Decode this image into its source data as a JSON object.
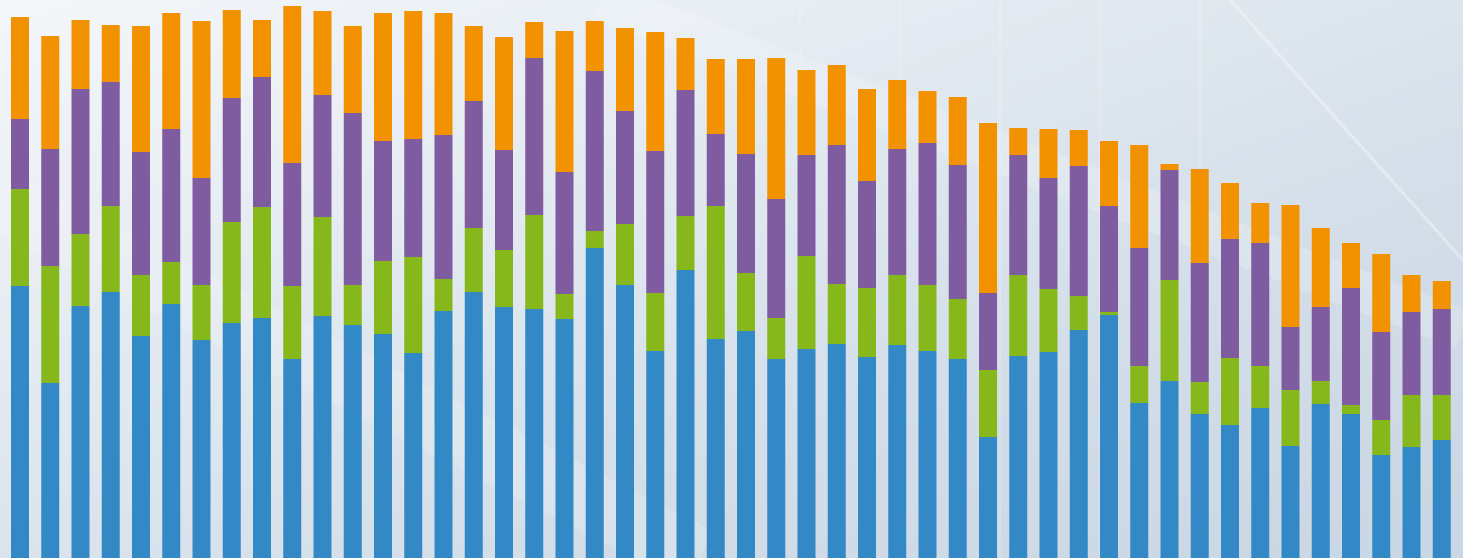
{
  "chart_data": {
    "type": "stacked-bar",
    "ylim": [
      0,
      558
    ],
    "series": [
      {
        "color": "#3389c6",
        "values": [
          272,
          175,
          252,
          266,
          222,
          254,
          218,
          235,
          240,
          199,
          242,
          233,
          224,
          205,
          247,
          266,
          251,
          249,
          239,
          310,
          273,
          207,
          288,
          219,
          227,
          199,
          209,
          214,
          201,
          213,
          207,
          199,
          121,
          202,
          206,
          228,
          243,
          155,
          177,
          144,
          133,
          150,
          112,
          154,
          144,
          103,
          111,
          118
        ]
      },
      {
        "color": "#86b81b",
        "values": [
          97,
          117,
          72,
          86,
          61,
          42,
          55,
          101,
          111,
          73,
          99,
          40,
          73,
          96,
          32,
          64,
          57,
          94,
          25,
          17,
          61,
          58,
          54,
          133,
          58,
          41,
          93,
          60,
          69,
          70,
          66,
          60,
          67,
          81,
          63,
          34,
          3,
          37,
          101,
          32,
          67,
          42,
          56,
          23,
          9,
          35,
          52,
          45
        ]
      },
      {
        "color": "#7f5ca0",
        "values": [
          70,
          117,
          145,
          124,
          123,
          133,
          107,
          124,
          130,
          123,
          122,
          172,
          120,
          118,
          144,
          127,
          100,
          157,
          122,
          160,
          113,
          142,
          126,
          72,
          119,
          119,
          101,
          139,
          107,
          126,
          142,
          134,
          77,
          120,
          111,
          130,
          106,
          118,
          110,
          119,
          119,
          123,
          63,
          74,
          117,
          88,
          83,
          86
        ]
      },
      {
        "color": "#f39200",
        "values": [
          102,
          113,
          69,
          57,
          126,
          116,
          157,
          88,
          57,
          157,
          84,
          87,
          128,
          128,
          122,
          75,
          113,
          36,
          141,
          50,
          83,
          119,
          52,
          75,
          95,
          141,
          85,
          80,
          92,
          69,
          52,
          68,
          170,
          27,
          49,
          36,
          65,
          103,
          6,
          94,
          56,
          40,
          122,
          79,
          45,
          78,
          37,
          28
        ]
      }
    ]
  }
}
